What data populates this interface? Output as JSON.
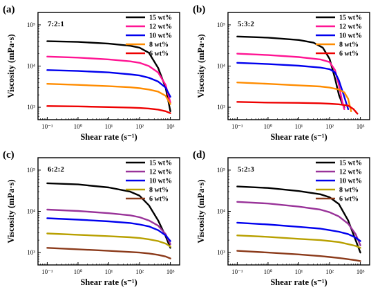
{
  "chart_data": [
    {
      "type": "line",
      "panel_label": "(a)",
      "ratio_label": "7:2:1",
      "xlabel": "Shear rate (s⁻¹)",
      "ylabel": "Viscosity (mPa·s)",
      "xscale": "log",
      "yscale": "log",
      "xlim": [
        0.05,
        2000
      ],
      "ylim": [
        500,
        200000
      ],
      "xticks": [
        "10⁻¹",
        "10⁰",
        "10¹",
        "10²",
        "10³"
      ],
      "yticks": [
        "10³",
        "10⁴",
        "10⁵"
      ],
      "legend_position": "top-right",
      "series": [
        {
          "name": "15 wt%",
          "color": "#000000",
          "x": [
            0.1,
            1,
            10,
            50,
            100,
            200,
            400,
            700,
            1000
          ],
          "y": [
            40000,
            38500,
            35000,
            31000,
            28000,
            21000,
            9000,
            3000,
            800
          ]
        },
        {
          "name": "12 wt%",
          "color": "#ff1493",
          "x": [
            0.1,
            1,
            10,
            50,
            100,
            200,
            400,
            700,
            1000
          ],
          "y": [
            17000,
            16000,
            14500,
            13000,
            12000,
            10000,
            7000,
            3500,
            1300
          ]
        },
        {
          "name": "10 wt%",
          "color": "#0000ee",
          "x": [
            0.1,
            1,
            10,
            50,
            100,
            200,
            400,
            700,
            1000
          ],
          "y": [
            8000,
            7600,
            7000,
            6300,
            5900,
            5200,
            4200,
            3000,
            1800
          ]
        },
        {
          "name": "8 wt%",
          "color": "#ff8c00",
          "x": [
            0.1,
            1,
            10,
            50,
            100,
            200,
            400,
            700,
            1000
          ],
          "y": [
            3700,
            3500,
            3250,
            3050,
            2900,
            2700,
            2400,
            1900,
            1200
          ]
        },
        {
          "name": "6 wt%",
          "color": "#ee0000",
          "x": [
            0.1,
            1,
            10,
            50,
            100,
            200,
            400,
            700,
            1000
          ],
          "y": [
            1070,
            1050,
            1010,
            980,
            960,
            930,
            880,
            800,
            720
          ]
        }
      ]
    },
    {
      "type": "line",
      "panel_label": "(b)",
      "ratio_label": "5:3:2",
      "xlabel": "Shear rate (s⁻¹)",
      "ylabel": "Viscosity (mPa·s)",
      "xscale": "log",
      "yscale": "log",
      "xlim": [
        0.05,
        2000
      ],
      "ylim": [
        500,
        200000
      ],
      "xticks": [
        "10⁻¹",
        "10⁰",
        "10¹",
        "10²",
        "10³"
      ],
      "yticks": [
        "10³",
        "10⁴",
        "10⁵"
      ],
      "legend_position": "top-right",
      "series": [
        {
          "name": "15 wt%",
          "color": "#000000",
          "x": [
            0.1,
            1,
            10,
            30,
            60,
            100,
            150,
            200,
            250,
            300
          ],
          "y": [
            52000,
            49000,
            43000,
            37000,
            28000,
            15000,
            5000,
            2000,
            1300,
            1000
          ]
        },
        {
          "name": "12 wt%",
          "color": "#ff1493",
          "x": [
            0.1,
            1,
            10,
            50,
            100,
            150,
            200,
            250,
            300
          ],
          "y": [
            20000,
            18500,
            16500,
            14500,
            12500,
            8000,
            3500,
            1500,
            900
          ]
        },
        {
          "name": "10 wt%",
          "color": "#0000ee",
          "x": [
            0.1,
            1,
            10,
            50,
            100,
            150,
            200,
            300,
            400
          ],
          "y": [
            12000,
            11200,
            10200,
            9200,
            8400,
            7000,
            4500,
            1800,
            900
          ]
        },
        {
          "name": "8 wt%",
          "color": "#ff8c00",
          "x": [
            0.1,
            1,
            10,
            50,
            100,
            200,
            300,
            400,
            500
          ],
          "y": [
            4000,
            3700,
            3400,
            3200,
            3000,
            2700,
            2300,
            1600,
            800
          ]
        },
        {
          "name": "6 wt%",
          "color": "#ee0000",
          "x": [
            0.1,
            1,
            10,
            50,
            100,
            200,
            400,
            600,
            800
          ],
          "y": [
            1350,
            1300,
            1280,
            1250,
            1220,
            1180,
            1100,
            900,
            700
          ]
        }
      ]
    },
    {
      "type": "line",
      "panel_label": "(c)",
      "ratio_label": "6:2:2",
      "xlabel": "Shear rate (s⁻¹)",
      "ylabel": "Viscosity (mPa·s)",
      "xscale": "log",
      "yscale": "log",
      "xlim": [
        0.05,
        2000
      ],
      "ylim": [
        500,
        200000
      ],
      "xticks": [
        "10⁻¹",
        "10⁰",
        "10¹",
        "10²",
        "10³"
      ],
      "yticks": [
        "10³",
        "10⁴",
        "10⁵"
      ],
      "legend_position": "top-right",
      "series": [
        {
          "name": "15 wt%",
          "color": "#000000",
          "x": [
            0.1,
            1,
            10,
            50,
            100,
            200,
            400,
            700,
            1000
          ],
          "y": [
            48000,
            45000,
            38000,
            30000,
            24000,
            14000,
            6000,
            2500,
            1300
          ]
        },
        {
          "name": "12 wt%",
          "color": "#993399",
          "x": [
            0.1,
            1,
            10,
            50,
            100,
            200,
            400,
            700,
            1000
          ],
          "y": [
            11000,
            10200,
            9000,
            8000,
            7200,
            6000,
            4500,
            2800,
            1600
          ]
        },
        {
          "name": "10 wt%",
          "color": "#0000ee",
          "x": [
            0.1,
            1,
            10,
            50,
            100,
            200,
            400,
            700,
            1000
          ],
          "y": [
            6800,
            6300,
            5700,
            5200,
            4800,
            4300,
            3500,
            2600,
            1900
          ]
        },
        {
          "name": "8 wt%",
          "color": "#b8a000",
          "x": [
            0.1,
            1,
            10,
            50,
            100,
            200,
            400,
            700,
            1000
          ],
          "y": [
            2900,
            2700,
            2500,
            2350,
            2250,
            2100,
            1900,
            1650,
            1400
          ]
        },
        {
          "name": "6 wt%",
          "color": "#8b3a1a",
          "x": [
            0.1,
            1,
            10,
            50,
            100,
            200,
            400,
            700,
            1000
          ],
          "y": [
            1300,
            1200,
            1100,
            1030,
            1000,
            950,
            880,
            800,
            720
          ]
        }
      ]
    },
    {
      "type": "line",
      "panel_label": "(d)",
      "ratio_label": "5:2:3",
      "xlabel": "Shear rate (s⁻¹)",
      "ylabel": "Viscosity (mPa·s)",
      "xscale": "log",
      "yscale": "log",
      "xlim": [
        0.05,
        2000
      ],
      "ylim": [
        500,
        200000
      ],
      "xticks": [
        "10⁻¹",
        "10⁰",
        "10¹",
        "10²",
        "10³"
      ],
      "yticks": [
        "10³",
        "10⁴",
        "10⁵"
      ],
      "legend_position": "top-right",
      "series": [
        {
          "name": "15 wt%",
          "color": "#000000",
          "x": [
            0.1,
            1,
            10,
            50,
            100,
            200,
            400,
            700,
            1000
          ],
          "y": [
            40000,
            37000,
            31000,
            26000,
            22000,
            15000,
            6000,
            2000,
            1000
          ]
        },
        {
          "name": "12 wt%",
          "color": "#993399",
          "x": [
            0.1,
            1,
            10,
            50,
            100,
            200,
            400,
            700,
            1000
          ],
          "y": [
            17000,
            15500,
            13000,
            11000,
            9500,
            7500,
            5000,
            2800,
            1500
          ]
        },
        {
          "name": "10 wt%",
          "color": "#0000ee",
          "x": [
            0.1,
            1,
            10,
            50,
            100,
            200,
            400,
            700,
            1000
          ],
          "y": [
            5300,
            4800,
            4200,
            3800,
            3500,
            3200,
            2800,
            2300,
            1900
          ]
        },
        {
          "name": "8 wt%",
          "color": "#b8a000",
          "x": [
            0.1,
            1,
            10,
            50,
            100,
            200,
            400,
            700,
            1000
          ],
          "y": [
            2600,
            2400,
            2150,
            2000,
            1900,
            1800,
            1600,
            1450,
            1300
          ]
        },
        {
          "name": "6 wt%",
          "color": "#8b3a1a",
          "x": [
            0.1,
            1,
            10,
            50,
            100,
            200,
            400,
            700,
            1000
          ],
          "y": [
            1100,
            1000,
            900,
            820,
            780,
            740,
            690,
            650,
            620
          ]
        }
      ]
    }
  ]
}
